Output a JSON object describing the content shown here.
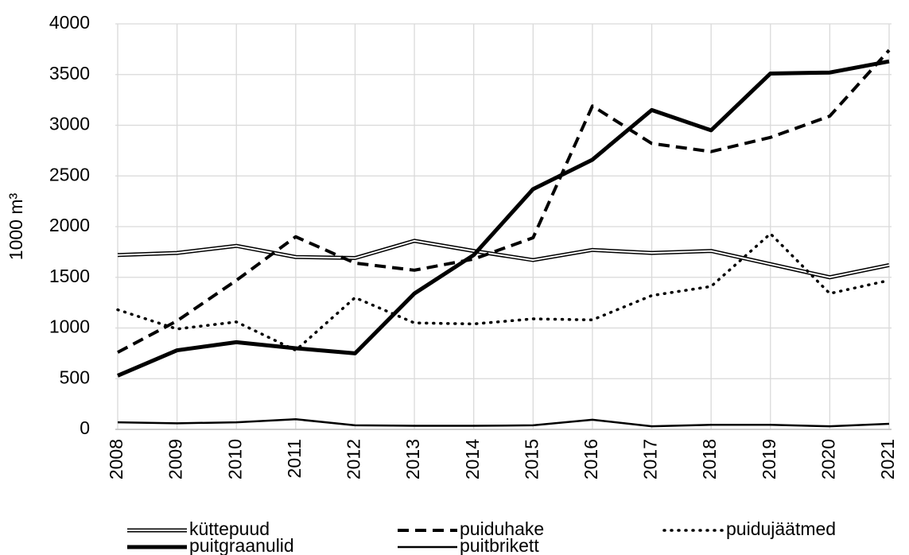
{
  "chart_data": {
    "type": "line",
    "y_label": "1000 m³",
    "categories": [
      "2008",
      "2009",
      "2010",
      "2011",
      "2012",
      "2013",
      "2014",
      "2015",
      "2016",
      "2017",
      "2018",
      "2019",
      "2020",
      "2021"
    ],
    "ylim": [
      0,
      4000
    ],
    "yticks": [
      0,
      500,
      1000,
      1500,
      2000,
      2500,
      3000,
      3500,
      4000
    ],
    "grid": true,
    "legend": "bottom",
    "series": [
      {
        "name": "küttepuud",
        "color": "#000000",
        "style": "double",
        "values": [
          1720,
          1740,
          1810,
          1700,
          1690,
          1860,
          1760,
          1670,
          1770,
          1740,
          1760,
          1630,
          1500,
          1620
        ]
      },
      {
        "name": "puiduhake",
        "color": "#000000",
        "style": "dashed",
        "values": [
          760,
          1070,
          1470,
          1900,
          1640,
          1570,
          1680,
          1890,
          3190,
          2820,
          2740,
          2880,
          3090,
          3740
        ]
      },
      {
        "name": "puidujäätmed",
        "color": "#000000",
        "style": "dotted",
        "values": [
          1180,
          990,
          1060,
          780,
          1300,
          1050,
          1040,
          1090,
          1080,
          1320,
          1410,
          1930,
          1340,
          1470
        ]
      },
      {
        "name": "puitgraanulid",
        "color": "#000000",
        "style": "thick",
        "values": [
          530,
          780,
          860,
          800,
          750,
          1340,
          1720,
          2370,
          2660,
          3150,
          2950,
          3510,
          3520,
          3630
        ]
      },
      {
        "name": "puitbrikett",
        "color": "#000000",
        "style": "solid",
        "values": [
          70,
          60,
          70,
          100,
          40,
          35,
          35,
          40,
          95,
          30,
          45,
          45,
          30,
          55
        ]
      }
    ]
  }
}
